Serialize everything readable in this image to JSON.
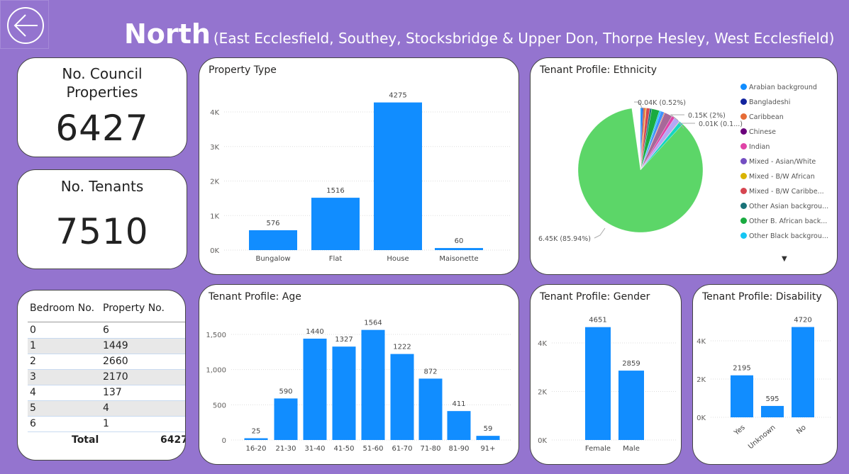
{
  "header": {
    "title": "North",
    "subtitle": "(East Ecclesfield, Southey, Stocksbridge & Upper Don, Thorpe Hesley, West Ecclesfield)",
    "back_icon": "back-arrow-icon"
  },
  "kpis": [
    {
      "label_line1": "No. Council",
      "label_line2": "Properties",
      "value": "6427"
    },
    {
      "label_line1": "No. Tenants",
      "value": "7510"
    }
  ],
  "bedroom_table": {
    "headers": [
      "Bedroom No.",
      "Property No."
    ],
    "rows": [
      [
        "0",
        "6"
      ],
      [
        "1",
        "1449"
      ],
      [
        "2",
        "2660"
      ],
      [
        "3",
        "2170"
      ],
      [
        "4",
        "137"
      ],
      [
        "5",
        "4"
      ],
      [
        "6",
        "1"
      ]
    ],
    "total_label": "Total",
    "total_value": "6427"
  },
  "colors": {
    "background": "#9474cf",
    "bar": "#118dff",
    "pie_main": "#5cd668"
  },
  "chart_data": [
    {
      "type": "bar",
      "title": "Property Type",
      "categories": [
        "Bungalow",
        "Flat",
        "House",
        "Maisonette"
      ],
      "values": [
        576,
        1516,
        4275,
        60
      ],
      "yticks": [
        "0K",
        "1K",
        "2K",
        "3K",
        "4K"
      ],
      "ylim": [
        0,
        4000
      ]
    },
    {
      "type": "bar",
      "title": "Tenant Profile: Age",
      "categories": [
        "16-20",
        "21-30",
        "31-40",
        "41-50",
        "51-60",
        "61-70",
        "71-80",
        "81-90",
        "91+"
      ],
      "values": [
        25,
        590,
        1440,
        1327,
        1564,
        1222,
        872,
        411,
        59
      ],
      "yticks": [
        "0",
        "500",
        "1,000",
        "1,500"
      ],
      "ylim": [
        0,
        1500
      ]
    },
    {
      "type": "bar",
      "title": "Tenant Profile: Gender",
      "categories": [
        "Female",
        "Male"
      ],
      "values": [
        4651,
        2859
      ],
      "yticks": [
        "0K",
        "2K",
        "4K"
      ],
      "ylim": [
        0,
        4000
      ]
    },
    {
      "type": "bar",
      "title": "Tenant Profile: Disability",
      "categories": [
        "Yes",
        "Unknown",
        "No"
      ],
      "values": [
        2195,
        595,
        4720
      ],
      "yticks": [
        "0K",
        "2K",
        "4K"
      ],
      "ylim": [
        0,
        4000
      ]
    },
    {
      "type": "pie",
      "title": "Tenant Profile: Ethnicity",
      "legend": [
        "Arabian background",
        "Bangladeshi",
        "Caribbean",
        "Chinese",
        "Indian",
        "Mixed - Asian/White",
        "Mixed - B/W African",
        "Mixed - B/W Caribbe...",
        "Other Asian backgrou...",
        "Other B. African back...",
        "Other Black backgrou..."
      ],
      "legend_colors": [
        "#118dff",
        "#12239e",
        "#e66c37",
        "#6b007b",
        "#e044a7",
        "#744ec2",
        "#d9b300",
        "#d64550",
        "#197278",
        "#1aab40",
        "#15c6f4"
      ],
      "slices": [
        {
          "pct": 0.5,
          "color": "#118dff"
        },
        {
          "pct": 0.3,
          "color": "#12239e"
        },
        {
          "pct": 0.52,
          "color": "#e66c37"
        },
        {
          "pct": 0.2,
          "color": "#d9b300"
        },
        {
          "pct": 0.9,
          "color": "#d64550"
        },
        {
          "pct": 0.5,
          "color": "#197278"
        },
        {
          "pct": 2.0,
          "color": "#1aab40"
        },
        {
          "pct": 0.4,
          "color": "#15c6f4"
        },
        {
          "pct": 0.9,
          "color": "#4092ff"
        },
        {
          "pct": 0.2,
          "color": "#e66c37"
        },
        {
          "pct": 2.0,
          "color": "#a66999"
        },
        {
          "pct": 0.8,
          "color": "#e044a7"
        },
        {
          "pct": 1.5,
          "color": "#b4a7f5"
        },
        {
          "pct": 0.12,
          "color": "#e6a23c"
        },
        {
          "pct": 1.0,
          "color": "#15d6c2"
        },
        {
          "pct": 85.94,
          "color": "#5cd668"
        }
      ],
      "labels": [
        "0.04K (0.52%)",
        "0.15K (2%)",
        "0.01K (0.1...)",
        "6.45K (85.94%)"
      ]
    }
  ]
}
